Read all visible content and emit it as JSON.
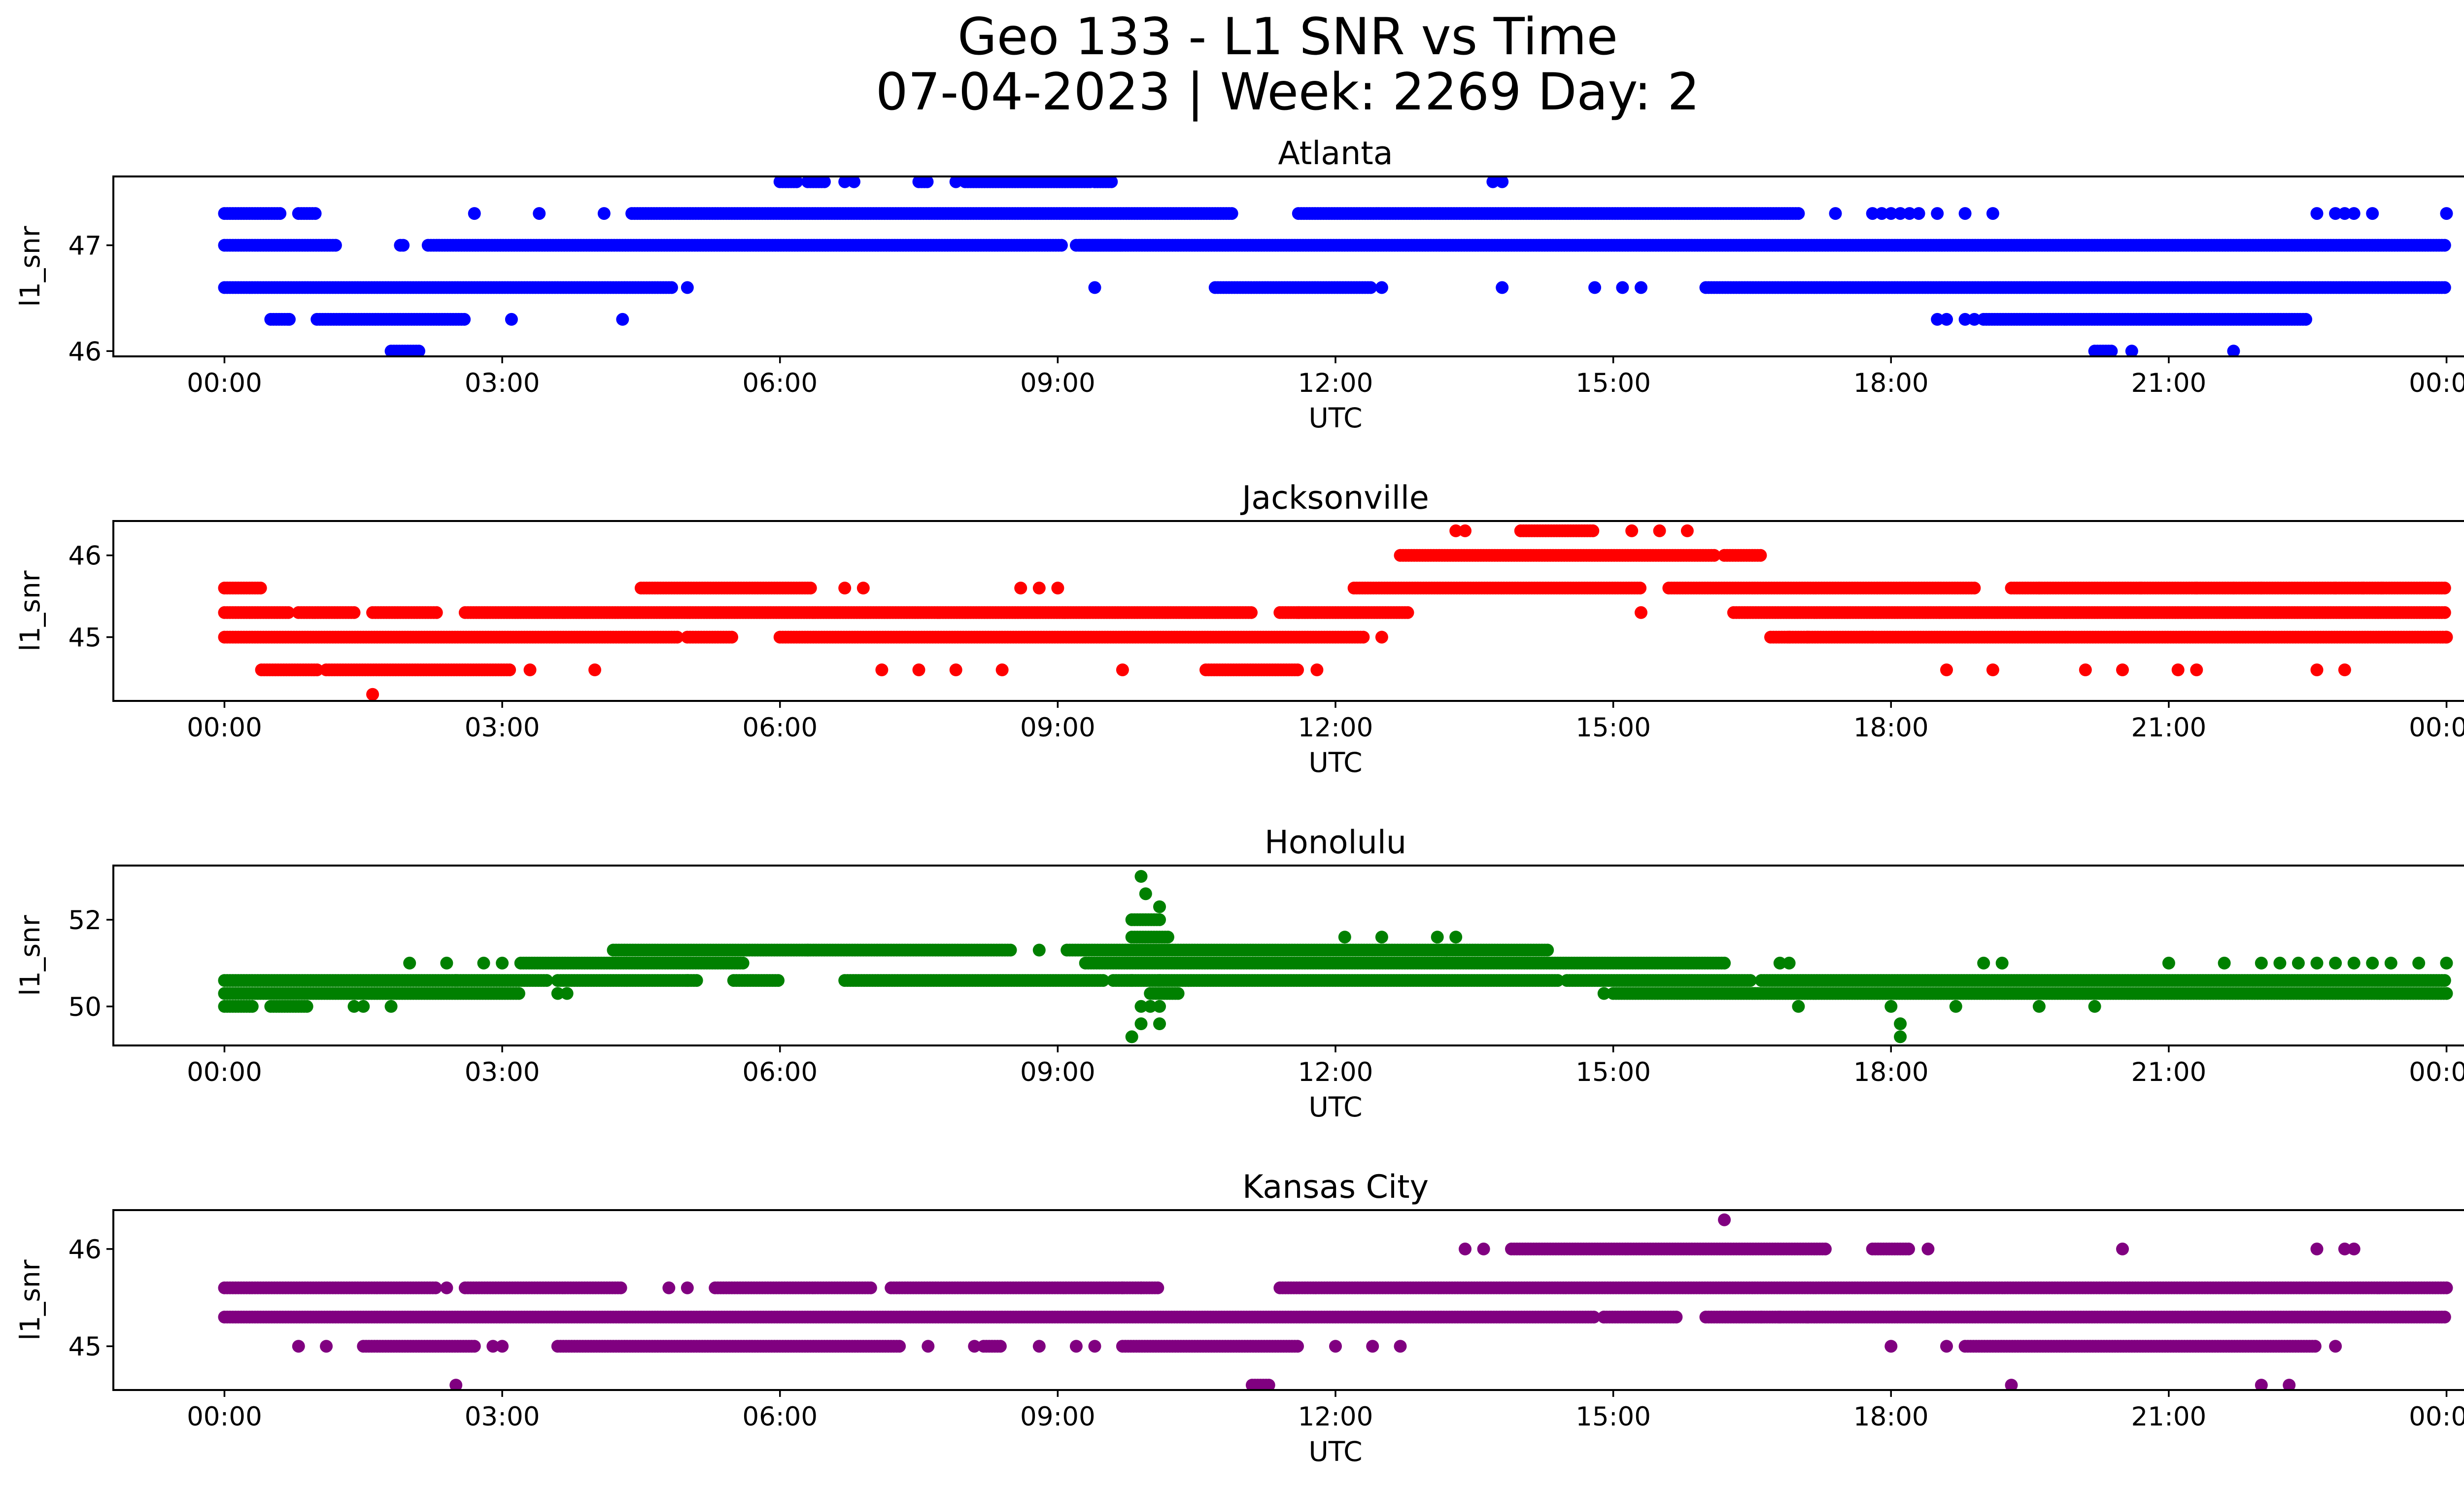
{
  "figure": {
    "title_line1": "Geo 133 - L1 SNR vs Time",
    "title_line2": "07-04-2023 | Week: 2269 Day: 2"
  },
  "chart_data": [
    {
      "type": "scatter",
      "title": "Atlanta",
      "xlabel": "UTC",
      "ylabel": "l1_snr",
      "color": "#0000ff",
      "xlim": [
        -1.2,
        25.2
      ],
      "ylim": [
        45.95,
        47.65
      ],
      "xticks": [
        0,
        3,
        6,
        9,
        12,
        15,
        18,
        21,
        24
      ],
      "xticklabels": [
        "00:00",
        "03:00",
        "06:00",
        "09:00",
        "12:00",
        "15:00",
        "18:00",
        "21:00",
        "00:00"
      ],
      "yticks": [
        46,
        47
      ],
      "yticklabels": [
        "46",
        "47"
      ],
      "segments": [
        {
          "y": 47.0,
          "ranges": [
            [
              0.0,
              1.2
            ],
            [
              1.9,
              1.95
            ],
            [
              2.2,
              9.05
            ],
            [
              9.2,
              9.7
            ],
            [
              9.25,
              24.0
            ]
          ],
          "isolated": []
        },
        {
          "y": 46.6,
          "ranges": [
            [
              0.0,
              4.85
            ],
            [
              10.7,
              12.4
            ],
            [
              16.0,
              24.0
            ]
          ],
          "isolated": [
            5.0,
            9.4,
            12.5,
            13.8,
            14.8,
            15.1,
            15.3
          ]
        },
        {
          "y": 47.3,
          "ranges": [
            [
              0.0,
              0.6
            ],
            [
              0.8,
              1.0
            ],
            [
              4.4,
              10.9
            ],
            [
              11.6,
              17.0
            ]
          ],
          "isolated": [
            2.7,
            3.4,
            4.1,
            17.4,
            17.8,
            17.9,
            18.0,
            18.1,
            18.2,
            18.3,
            18.5,
            18.8,
            19.1,
            22.6,
            22.8,
            22.9,
            23.0,
            23.2,
            24.0
          ]
        },
        {
          "y": 46.3,
          "ranges": [
            [
              0.5,
              0.7
            ],
            [
              1.0,
              2.6
            ],
            [
              19.0,
              22.5
            ]
          ],
          "isolated": [
            0.7,
            3.1,
            4.3,
            18.5,
            18.6,
            18.8,
            18.9
          ]
        },
        {
          "y": 47.6,
          "ranges": [
            [
              6.0,
              6.2
            ],
            [
              6.3,
              6.5
            ],
            [
              7.5,
              7.6
            ],
            [
              8.0,
              9.35
            ],
            [
              9.4,
              9.6
            ]
          ],
          "isolated": [
            6.7,
            6.8,
            7.9,
            13.7,
            13.8
          ]
        },
        {
          "y": 46.0,
          "ranges": [
            [
              1.8,
              2.1
            ],
            [
              20.2,
              20.4
            ]
          ],
          "isolated": [
            20.6,
            21.7
          ]
        }
      ]
    },
    {
      "type": "scatter",
      "title": "Jacksonville",
      "xlabel": "UTC",
      "ylabel": "l1_snr",
      "color": "#ff0000",
      "xlim": [
        -1.2,
        25.2
      ],
      "ylim": [
        44.22,
        46.42
      ],
      "xticks": [
        0,
        3,
        6,
        9,
        12,
        15,
        18,
        21,
        24
      ],
      "xticklabels": [
        "00:00",
        "03:00",
        "06:00",
        "09:00",
        "12:00",
        "15:00",
        "18:00",
        "21:00",
        "00:00"
      ],
      "yticks": [
        45,
        46
      ],
      "yticklabels": [
        "45",
        "46"
      ],
      "segments": [
        {
          "y": 45.3,
          "ranges": [
            [
              0.0,
              0.7
            ],
            [
              0.8,
              1.4
            ],
            [
              1.6,
              2.3
            ],
            [
              2.6,
              11.1
            ],
            [
              11.4,
              12.8
            ],
            [
              16.3,
              24.0
            ]
          ],
          "isolated": [
            11.6,
            15.3
          ]
        },
        {
          "y": 45.0,
          "ranges": [
            [
              0.0,
              4.9
            ],
            [
              5.0,
              5.5
            ],
            [
              6.0,
              12.3
            ],
            [
              16.7,
              24.0
            ]
          ],
          "isolated": [
            16.9,
            17.1,
            12.5,
            17.8,
            24.0
          ]
        },
        {
          "y": 45.6,
          "ranges": [
            [
              0.0,
              0.4
            ],
            [
              4.5,
              6.35
            ],
            [
              12.2,
              15.3
            ],
            [
              15.6,
              18.9
            ],
            [
              19.3,
              24.0
            ]
          ],
          "isolated": [
            6.7,
            6.9,
            8.6,
            8.8,
            9.0,
            19.6,
            20.7,
            21.3,
            21.7,
            22.0,
            22.8,
            23.1,
            23.3
          ]
        },
        {
          "y": 44.6,
          "ranges": [
            [
              0.4,
              1.0
            ],
            [
              1.1,
              3.1
            ],
            [
              10.6,
              11.6
            ]
          ],
          "isolated": [
            3.3,
            4.0,
            7.1,
            7.5,
            7.9,
            8.4,
            9.7,
            11.8,
            18.6,
            19.1,
            20.1,
            20.5,
            21.1,
            21.3,
            22.6,
            22.9
          ]
        },
        {
          "y": 46.0,
          "ranges": [
            [
              12.7,
              16.1
            ],
            [
              16.2,
              16.6
            ]
          ],
          "isolated": []
        },
        {
          "y": 46.3,
          "ranges": [
            [
              14.0,
              14.8
            ]
          ],
          "isolated": [
            13.3,
            13.4,
            15.2,
            15.5,
            15.8
          ]
        },
        {
          "y": 44.3,
          "ranges": [],
          "isolated": [
            1.6
          ]
        }
      ]
    },
    {
      "type": "scatter",
      "title": "Honolulu",
      "xlabel": "UTC",
      "ylabel": "l1_snr",
      "color": "#008000",
      "xlim": [
        -1.2,
        25.2
      ],
      "ylim": [
        49.1,
        53.25
      ],
      "xticks": [
        0,
        3,
        6,
        9,
        12,
        15,
        18,
        21,
        24
      ],
      "xticklabels": [
        "00:00",
        "03:00",
        "06:00",
        "09:00",
        "12:00",
        "15:00",
        "18:00",
        "21:00",
        "00:00"
      ],
      "yticks": [
        50,
        52
      ],
      "yticklabels": [
        "50",
        "52"
      ],
      "segments": [
        {
          "y": 50.6,
          "ranges": [
            [
              0.0,
              3.5
            ],
            [
              3.6,
              5.1
            ],
            [
              5.5,
              6.0
            ],
            [
              6.7,
              9.5
            ],
            [
              9.6,
              14.4
            ],
            [
              14.5,
              16.5
            ],
            [
              16.6,
              24.0
            ]
          ],
          "isolated": [
            9.8,
            10.1
          ]
        },
        {
          "y": 50.3,
          "ranges": [
            [
              0.0,
              3.2
            ],
            [
              10.0,
              10.3
            ],
            [
              15.0,
              24.0
            ]
          ],
          "isolated": [
            3.6,
            3.7,
            14.9
          ]
        },
        {
          "y": 50.0,
          "ranges": [
            [
              0.0,
              0.3
            ],
            [
              0.5,
              0.9
            ]
          ],
          "isolated": [
            1.4,
            1.5,
            1.8,
            9.9,
            10.0,
            10.1,
            17.0,
            18.0,
            18.7,
            19.6,
            20.2
          ]
        },
        {
          "y": 51.0,
          "ranges": [
            [
              3.2,
              5.6
            ],
            [
              9.3,
              16.2
            ]
          ],
          "isolated": [
            2.0,
            2.4,
            2.8,
            3.0,
            16.8,
            16.9,
            19.0,
            19.2,
            21.0,
            21.6,
            22.0,
            22.2,
            22.4,
            22.6,
            22.8,
            23.0,
            23.2,
            23.4,
            23.7,
            24.0
          ]
        },
        {
          "y": 51.3,
          "ranges": [
            [
              4.2,
              6.3
            ],
            [
              6.3,
              8.5
            ],
            [
              9.1,
              14.3
            ]
          ],
          "isolated": [
            8.8,
            13.2
          ]
        },
        {
          "y": 50.6,
          "ranges": [],
          "isolated": [
            2.5,
            5.0
          ]
        },
        {
          "y": 51.6,
          "ranges": [
            [
              9.8,
              10.2
            ]
          ],
          "isolated": [
            12.1,
            12.5,
            13.1,
            13.3
          ]
        },
        {
          "y": 52.0,
          "ranges": [
            [
              9.8,
              10.1
            ]
          ],
          "isolated": []
        },
        {
          "y": 52.3,
          "ranges": [],
          "isolated": [
            10.1
          ]
        },
        {
          "y": 52.6,
          "ranges": [],
          "isolated": [
            9.95
          ]
        },
        {
          "y": 53.0,
          "ranges": [],
          "isolated": [
            9.9
          ]
        },
        {
          "y": 49.6,
          "ranges": [],
          "isolated": [
            9.9,
            10.1,
            18.1
          ]
        },
        {
          "y": 49.3,
          "ranges": [],
          "isolated": [
            9.8,
            18.1
          ]
        }
      ]
    },
    {
      "type": "scatter",
      "title": "Kansas City",
      "xlabel": "UTC",
      "ylabel": "l1_snr",
      "color": "#800080",
      "xlim": [
        -1.2,
        25.2
      ],
      "ylim": [
        44.55,
        46.4
      ],
      "xticks": [
        0,
        3,
        6,
        9,
        12,
        15,
        18,
        21,
        24
      ],
      "xticklabels": [
        "00:00",
        "03:00",
        "06:00",
        "09:00",
        "12:00",
        "15:00",
        "18:00",
        "21:00",
        "00:00"
      ],
      "yticks": [
        45,
        46
      ],
      "yticklabels": [
        "45",
        "46"
      ],
      "segments": [
        {
          "y": 45.3,
          "ranges": [
            [
              0.0,
              14.8
            ],
            [
              14.9,
              15.7
            ],
            [
              16.0,
              24.0
            ]
          ],
          "isolated": []
        },
        {
          "y": 45.6,
          "ranges": [
            [
              0.0,
              2.3
            ],
            [
              2.6,
              4.3
            ],
            [
              5.3,
              7.0
            ],
            [
              7.2,
              10.1
            ],
            [
              11.4,
              24.0
            ]
          ],
          "isolated": [
            2.4,
            4.8,
            5.0,
            9.7,
            9.9
          ]
        },
        {
          "y": 45.0,
          "ranges": [
            [
              1.5,
              2.7
            ],
            [
              3.6,
              7.3
            ],
            [
              8.2,
              8.4
            ],
            [
              9.7,
              11.6
            ],
            [
              18.8,
              22.6
            ]
          ],
          "isolated": [
            0.8,
            1.1,
            2.9,
            3.0,
            7.6,
            8.1,
            8.8,
            9.2,
            9.4,
            12.0,
            12.4,
            12.7,
            18.0,
            18.6,
            22.8
          ]
        },
        {
          "y": 46.0,
          "ranges": [
            [
              13.9,
              17.3
            ],
            [
              17.8,
              18.2
            ]
          ],
          "isolated": [
            13.4,
            13.6,
            18.4,
            20.5,
            22.6,
            22.9,
            23.0
          ]
        },
        {
          "y": 45.3,
          "ranges": [],
          "isolated": [
            14.9
          ]
        },
        {
          "y": 45.3,
          "ranges": [],
          "isolated": [
            16.6,
            16.8,
            17.1
          ]
        },
        {
          "y": 44.6,
          "ranges": [
            [
              11.1,
              11.3
            ]
          ],
          "isolated": [
            2.5,
            19.3,
            22.0,
            22.3
          ]
        },
        {
          "y": 46.3,
          "ranges": [],
          "isolated": [
            16.2
          ]
        }
      ]
    }
  ]
}
